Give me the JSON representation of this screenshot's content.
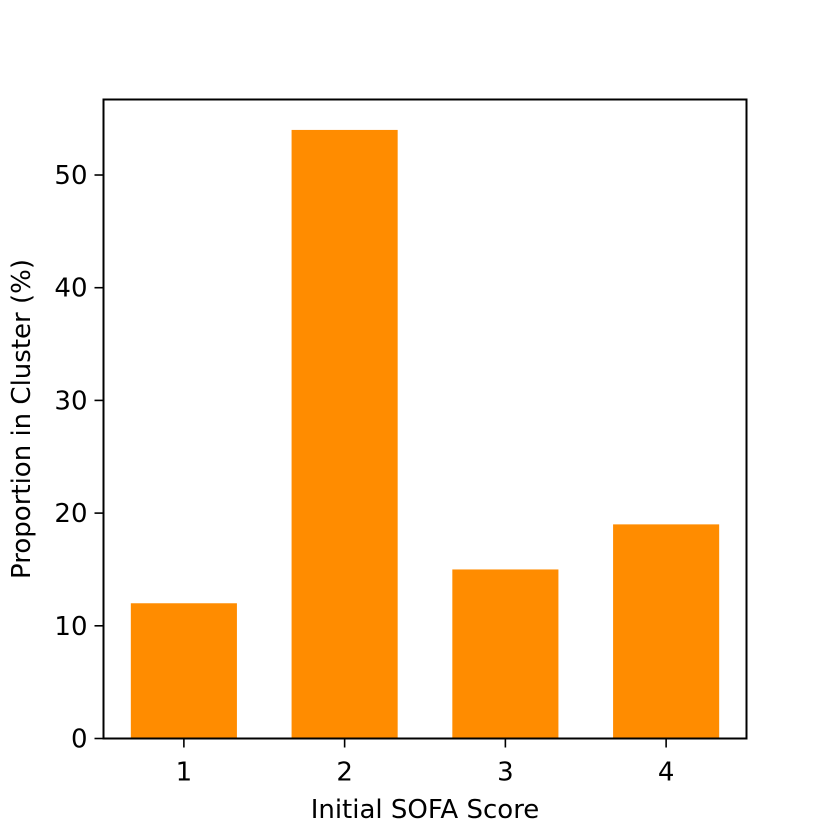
{
  "chart_data": {
    "type": "bar",
    "categories": [
      "1",
      "2",
      "3",
      "4"
    ],
    "values": [
      12,
      54,
      15,
      19
    ],
    "title": "",
    "xlabel": "Initial SOFA Score",
    "ylabel": "Proportion in Cluster (%)",
    "ylim": [
      0,
      56.7
    ],
    "yticks": [
      "0",
      "10",
      "20",
      "30",
      "40",
      "50"
    ],
    "grid": false,
    "bar_color": "#ff8c00"
  }
}
